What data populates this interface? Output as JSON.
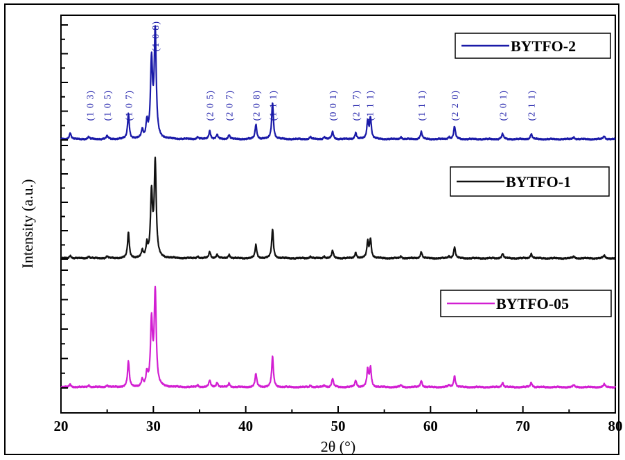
{
  "chart_data": {
    "type": "line",
    "title": "",
    "xlabel": "2θ (°)",
    "ylabel": "Intensity (a.u.)",
    "xlim": [
      20,
      80
    ],
    "xticks": [
      20,
      30,
      40,
      50,
      60,
      70,
      80
    ],
    "grid": false,
    "legend_placement": "right, one entry beside each pattern",
    "series": [
      {
        "name": "BYTFO-2",
        "color": "#1a1aa8",
        "peaks": [
          [
            21.0,
            0.06
          ],
          [
            23.0,
            0.02
          ],
          [
            25.0,
            0.03
          ],
          [
            27.3,
            0.24
          ],
          [
            28.8,
            0.08
          ],
          [
            29.3,
            0.15
          ],
          [
            29.8,
            0.72
          ],
          [
            30.2,
            1.0
          ],
          [
            34.8,
            0.02
          ],
          [
            36.1,
            0.08
          ],
          [
            36.9,
            0.04
          ],
          [
            38.2,
            0.04
          ],
          [
            41.1,
            0.14
          ],
          [
            42.9,
            0.35
          ],
          [
            47.0,
            0.02
          ],
          [
            48.5,
            0.02
          ],
          [
            49.4,
            0.07
          ],
          [
            51.9,
            0.06
          ],
          [
            53.2,
            0.17
          ],
          [
            53.5,
            0.2
          ],
          [
            56.8,
            0.02
          ],
          [
            59.0,
            0.07
          ],
          [
            62.0,
            0.02
          ],
          [
            62.6,
            0.12
          ],
          [
            67.8,
            0.05
          ],
          [
            70.9,
            0.05
          ],
          [
            75.5,
            0.02
          ],
          [
            78.8,
            0.03
          ]
        ]
      },
      {
        "name": "BYTFO-1",
        "color": "#111111",
        "peaks": [
          [
            21.0,
            0.03
          ],
          [
            23.0,
            0.02
          ],
          [
            25.0,
            0.02
          ],
          [
            27.3,
            0.27
          ],
          [
            28.8,
            0.07
          ],
          [
            29.3,
            0.13
          ],
          [
            29.8,
            0.67
          ],
          [
            30.2,
            1.0
          ],
          [
            34.8,
            0.02
          ],
          [
            36.1,
            0.07
          ],
          [
            36.9,
            0.04
          ],
          [
            38.2,
            0.04
          ],
          [
            41.1,
            0.14
          ],
          [
            42.9,
            0.31
          ],
          [
            47.0,
            0.02
          ],
          [
            48.5,
            0.02
          ],
          [
            49.4,
            0.08
          ],
          [
            51.9,
            0.06
          ],
          [
            53.2,
            0.17
          ],
          [
            53.5,
            0.2
          ],
          [
            56.8,
            0.02
          ],
          [
            59.0,
            0.07
          ],
          [
            62.0,
            0.02
          ],
          [
            62.6,
            0.12
          ],
          [
            67.8,
            0.05
          ],
          [
            70.9,
            0.05
          ],
          [
            75.5,
            0.02
          ],
          [
            78.8,
            0.03
          ]
        ]
      },
      {
        "name": "BYTFO-05",
        "color": "#d21fd2",
        "peaks": [
          [
            21.0,
            0.03
          ],
          [
            23.0,
            0.02
          ],
          [
            25.0,
            0.02
          ],
          [
            27.3,
            0.27
          ],
          [
            28.8,
            0.07
          ],
          [
            29.3,
            0.13
          ],
          [
            29.8,
            0.68
          ],
          [
            30.2,
            1.0
          ],
          [
            34.8,
            0.02
          ],
          [
            36.1,
            0.07
          ],
          [
            36.9,
            0.05
          ],
          [
            38.2,
            0.04
          ],
          [
            41.1,
            0.14
          ],
          [
            42.9,
            0.32
          ],
          [
            47.0,
            0.02
          ],
          [
            48.5,
            0.02
          ],
          [
            49.4,
            0.09
          ],
          [
            51.9,
            0.07
          ],
          [
            53.2,
            0.18
          ],
          [
            53.5,
            0.2
          ],
          [
            56.8,
            0.02
          ],
          [
            59.0,
            0.07
          ],
          [
            62.0,
            0.02
          ],
          [
            62.6,
            0.12
          ],
          [
            67.8,
            0.05
          ],
          [
            70.9,
            0.05
          ],
          [
            75.5,
            0.02
          ],
          [
            78.8,
            0.03
          ]
        ]
      }
    ],
    "annotations": [
      {
        "text": "(1 0 3)",
        "x": 23.1
      },
      {
        "text": "(1 0 5)",
        "x": 25.0
      },
      {
        "text": "(1 0 7)",
        "x": 27.3
      },
      {
        "text": "(1 0 8)",
        "x": 30.2
      },
      {
        "text": "(2 0 5)",
        "x": 36.1
      },
      {
        "text": "(2 0 7)",
        "x": 38.2
      },
      {
        "text": "(2 0 8)",
        "x": 41.1
      },
      {
        "text": "(1 1 1)",
        "x": 42.9
      },
      {
        "text": "(0 0 1)",
        "x": 49.4
      },
      {
        "text": "(2 1 7)",
        "x": 51.9
      },
      {
        "text": "(1 1 1)",
        "x": 53.4
      },
      {
        "text": "(1 1 1)",
        "x": 59.0
      },
      {
        "text": "(2 2 0)",
        "x": 62.6
      },
      {
        "text": "(2 0 1)",
        "x": 67.8
      },
      {
        "text": "(2 1 1)",
        "x": 70.9
      }
    ]
  }
}
